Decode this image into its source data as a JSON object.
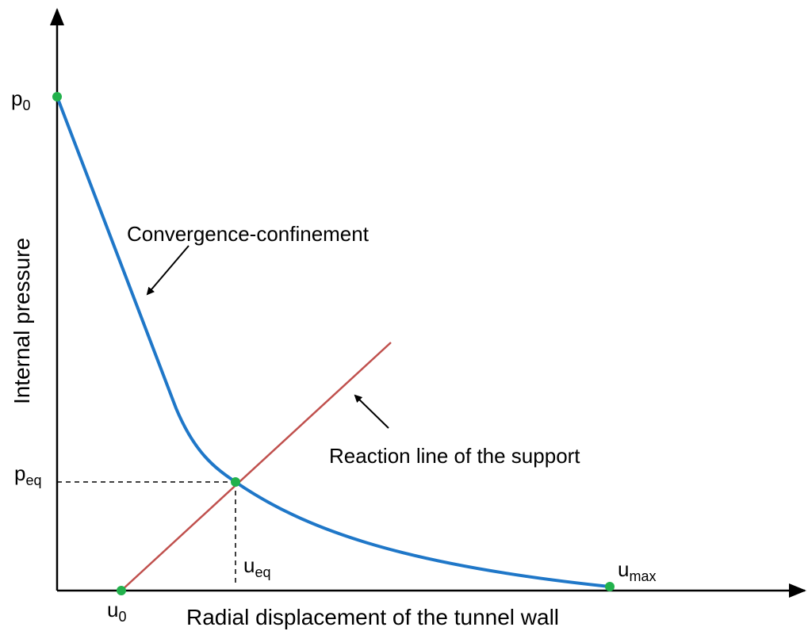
{
  "axes": {
    "y_label": "Internal pressure",
    "x_label": "Radial displacement of the tunnel wall"
  },
  "annotations": {
    "curve": "Convergence-confinement",
    "support": "Reaction line of the support"
  },
  "points": {
    "p0": {
      "base": "p",
      "sub": "0"
    },
    "peq": {
      "base": "p",
      "sub": "eq"
    },
    "u0": {
      "base": "u",
      "sub": "0"
    },
    "ueq": {
      "base": "u",
      "sub": "eq"
    },
    "umax": {
      "base": "u",
      "sub": "max"
    }
  }
}
